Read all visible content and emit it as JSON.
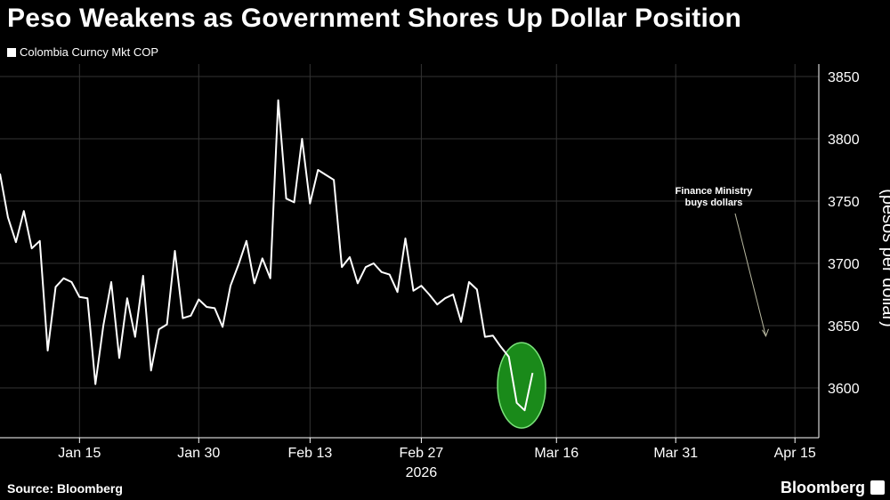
{
  "header": {
    "title": "Peso Weakens as Government Shores Up Dollar Position"
  },
  "footer": {
    "source": "Source: Bloomberg",
    "brand": "Bloomberg"
  },
  "colors": {
    "background": "#000000",
    "line": "#ffffff",
    "grid": "#333333",
    "highlight": "#1a8a1a"
  },
  "chart_data": {
    "type": "line",
    "title": "Peso Weakens as Government Shores Up Dollar Position",
    "ylabel": "(pesos per dollar)",
    "ylim": [
      3560,
      3860
    ],
    "yticks": [
      3600,
      3650,
      3700,
      3750,
      3800,
      3850
    ],
    "xlim": [
      "2026-01-05",
      "2026-04-18"
    ],
    "xticks": [
      {
        "date": "2026-01-15",
        "label": "Jan 15"
      },
      {
        "date": "2026-01-30",
        "label": "Jan 30"
      },
      {
        "date": "2026-02-13",
        "label": "Feb 13"
      },
      {
        "date": "2026-02-27",
        "label": "Feb 27"
      },
      {
        "date": "2026-03-16",
        "label": "Mar 16"
      },
      {
        "date": "2026-03-31",
        "label": "Mar 31"
      },
      {
        "date": "2026-04-15",
        "label": "Apr 15"
      }
    ],
    "year_label": "2026",
    "grid": true,
    "legend_position": "top-left",
    "series": [
      {
        "name": "Colombia Curncy Mkt COP",
        "points": [
          [
            "2026-01-05",
            3772
          ],
          [
            "2026-01-06",
            3737
          ],
          [
            "2026-01-07",
            3717
          ],
          [
            "2026-01-08",
            3742
          ],
          [
            "2026-01-09",
            3712
          ],
          [
            "2026-01-10",
            3718
          ],
          [
            "2026-01-11",
            3630
          ],
          [
            "2026-01-12",
            3681
          ],
          [
            "2026-01-13",
            3688
          ],
          [
            "2026-01-14",
            3685
          ],
          [
            "2026-01-15",
            3673
          ],
          [
            "2026-01-16",
            3672
          ],
          [
            "2026-01-17",
            3603
          ],
          [
            "2026-01-18",
            3650
          ],
          [
            "2026-01-19",
            3685
          ],
          [
            "2026-01-20",
            3624
          ],
          [
            "2026-01-21",
            3672
          ],
          [
            "2026-01-22",
            3641
          ],
          [
            "2026-01-23",
            3690
          ],
          [
            "2026-01-24",
            3614
          ],
          [
            "2026-01-25",
            3647
          ],
          [
            "2026-01-26",
            3651
          ],
          [
            "2026-01-27",
            3710
          ],
          [
            "2026-01-28",
            3656
          ],
          [
            "2026-01-29",
            3658
          ],
          [
            "2026-01-30",
            3671
          ],
          [
            "2026-01-31",
            3665
          ],
          [
            "2026-02-01",
            3664
          ],
          [
            "2026-02-02",
            3649
          ],
          [
            "2026-02-03",
            3682
          ],
          [
            "2026-02-04",
            3699
          ],
          [
            "2026-02-05",
            3718
          ],
          [
            "2026-02-06",
            3684
          ],
          [
            "2026-02-07",
            3704
          ],
          [
            "2026-02-08",
            3688
          ],
          [
            "2026-02-09",
            3831
          ],
          [
            "2026-02-10",
            3752
          ],
          [
            "2026-02-11",
            3749
          ],
          [
            "2026-02-12",
            3800
          ],
          [
            "2026-02-13",
            3748
          ],
          [
            "2026-02-14",
            3775
          ],
          [
            "2026-02-15",
            3771
          ],
          [
            "2026-02-16",
            3767
          ],
          [
            "2026-02-17",
            3697
          ],
          [
            "2026-02-18",
            3705
          ],
          [
            "2026-02-19",
            3684
          ],
          [
            "2026-02-20",
            3697
          ],
          [
            "2026-02-21",
            3700
          ],
          [
            "2026-02-22",
            3693
          ],
          [
            "2026-02-23",
            3691
          ],
          [
            "2026-02-24",
            3677
          ],
          [
            "2026-02-25",
            3720
          ],
          [
            "2026-02-26",
            3678
          ],
          [
            "2026-02-27",
            3682
          ],
          [
            "2026-02-28",
            3675
          ],
          [
            "2026-03-01",
            3667
          ],
          [
            "2026-03-02",
            3672
          ],
          [
            "2026-03-03",
            3675
          ],
          [
            "2026-03-04",
            3653
          ],
          [
            "2026-03-05",
            3685
          ],
          [
            "2026-03-06",
            3679
          ],
          [
            "2026-03-07",
            3641
          ],
          [
            "2026-03-08",
            3642
          ],
          [
            "2026-03-09",
            3633
          ],
          [
            "2026-03-10",
            3625
          ],
          [
            "2026-03-11",
            3588
          ],
          [
            "2026-03-12",
            3582
          ],
          [
            "2026-03-13",
            3612
          ]
        ]
      }
    ],
    "annotations": [
      {
        "text": [
          "Finance Ministry",
          "buys dollars"
        ],
        "target": [
          "2026-04-11",
          3633
        ]
      }
    ]
  }
}
